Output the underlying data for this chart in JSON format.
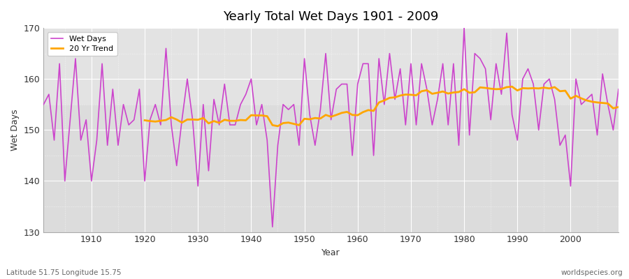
{
  "title": "Yearly Total Wet Days 1901 - 2009",
  "xlabel": "Year",
  "ylabel": "Wet Days",
  "footnote_left": "Latitude 51.75 Longitude 15.75",
  "footnote_right": "worldspecies.org",
  "line_color": "#cc44cc",
  "trend_color": "#ffa500",
  "fig_bg_color": "#ffffff",
  "plot_bg_color": "#dcdcdc",
  "ylim": [
    130,
    170
  ],
  "yticks": [
    130,
    140,
    150,
    160,
    170
  ],
  "xticks": [
    1910,
    1920,
    1930,
    1940,
    1950,
    1960,
    1970,
    1980,
    1990,
    2000
  ],
  "years": [
    1901,
    1902,
    1903,
    1904,
    1905,
    1906,
    1907,
    1908,
    1909,
    1910,
    1911,
    1912,
    1913,
    1914,
    1915,
    1916,
    1917,
    1918,
    1919,
    1920,
    1921,
    1922,
    1923,
    1924,
    1925,
    1926,
    1927,
    1928,
    1929,
    1930,
    1931,
    1932,
    1933,
    1934,
    1935,
    1936,
    1937,
    1938,
    1939,
    1940,
    1941,
    1942,
    1943,
    1944,
    1945,
    1946,
    1947,
    1948,
    1949,
    1950,
    1951,
    1952,
    1953,
    1954,
    1955,
    1956,
    1957,
    1958,
    1959,
    1960,
    1961,
    1962,
    1963,
    1964,
    1965,
    1966,
    1967,
    1968,
    1969,
    1970,
    1971,
    1972,
    1973,
    1974,
    1975,
    1976,
    1977,
    1978,
    1979,
    1980,
    1981,
    1982,
    1983,
    1984,
    1985,
    1986,
    1987,
    1988,
    1989,
    1990,
    1991,
    1992,
    1993,
    1994,
    1995,
    1996,
    1997,
    1998,
    1999,
    2000,
    2001,
    2002,
    2003,
    2004,
    2005,
    2006,
    2007,
    2008,
    2009
  ],
  "wet_days": [
    155,
    157,
    148,
    163,
    140,
    152,
    164,
    148,
    152,
    140,
    148,
    163,
    147,
    158,
    147,
    155,
    151,
    152,
    158,
    140,
    152,
    155,
    151,
    166,
    151,
    143,
    152,
    160,
    152,
    139,
    155,
    142,
    156,
    151,
    159,
    151,
    151,
    155,
    157,
    160,
    151,
    155,
    148,
    131,
    147,
    155,
    154,
    155,
    147,
    164,
    153,
    147,
    154,
    165,
    152,
    158,
    159,
    159,
    145,
    159,
    163,
    163,
    145,
    164,
    155,
    165,
    156,
    162,
    151,
    163,
    151,
    163,
    158,
    151,
    156,
    163,
    151,
    163,
    147,
    170,
    149,
    165,
    164,
    162,
    152,
    163,
    157,
    169,
    153,
    148,
    160,
    162,
    159,
    150,
    159,
    160,
    156,
    147,
    149,
    139,
    160,
    155,
    156,
    157,
    149,
    161,
    155,
    150,
    158
  ]
}
